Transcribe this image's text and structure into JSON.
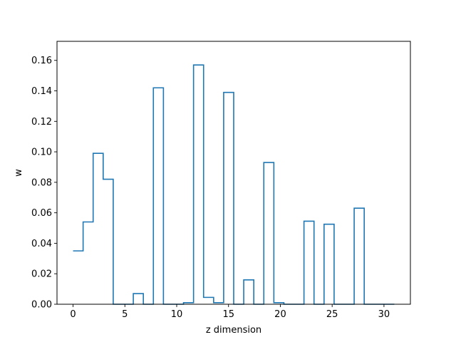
{
  "chart_data": {
    "type": "line",
    "style": "step-histogram",
    "xlabel": "z dimension",
    "ylabel": "w",
    "xlim": [
      -1.55,
      32.55
    ],
    "ylim": [
      0,
      0.1725
    ],
    "x_ticks": [
      0,
      5,
      10,
      15,
      20,
      25,
      30
    ],
    "x_tick_labels": [
      "0",
      "5",
      "10",
      "15",
      "20",
      "25",
      "30"
    ],
    "y_ticks": [
      0,
      0.02,
      0.04,
      0.06,
      0.08,
      0.1,
      0.12,
      0.14,
      0.16
    ],
    "y_tick_labels": [
      "0.00",
      "0.02",
      "0.04",
      "0.06",
      "0.08",
      "0.10",
      "0.12",
      "0.14",
      "0.16"
    ],
    "grid": false,
    "series": [
      {
        "color": "#1f77b4",
        "bin_edges": [
          0,
          0.969,
          1.938,
          2.906,
          3.875,
          4.844,
          5.813,
          6.781,
          7.75,
          8.719,
          9.688,
          10.656,
          11.625,
          12.594,
          13.563,
          14.531,
          15.5,
          16.469,
          17.438,
          18.406,
          19.375,
          20.344,
          21.313,
          22.281,
          23.25,
          24.219,
          25.188,
          26.156,
          27.125,
          28.094,
          29.063,
          30.031,
          31.0
        ],
        "values": [
          0.035,
          0.054,
          0.099,
          0.082,
          0.0,
          0.0,
          0.007,
          0.0,
          0.142,
          0.0,
          0.0,
          0.001,
          0.157,
          0.0045,
          0.001,
          0.139,
          0.0,
          0.016,
          0.0,
          0.093,
          0.001,
          0.0,
          0.0,
          0.0545,
          0.0,
          0.0525,
          0.0,
          0.0,
          0.063,
          0.0,
          0.0,
          0.0
        ]
      }
    ]
  }
}
